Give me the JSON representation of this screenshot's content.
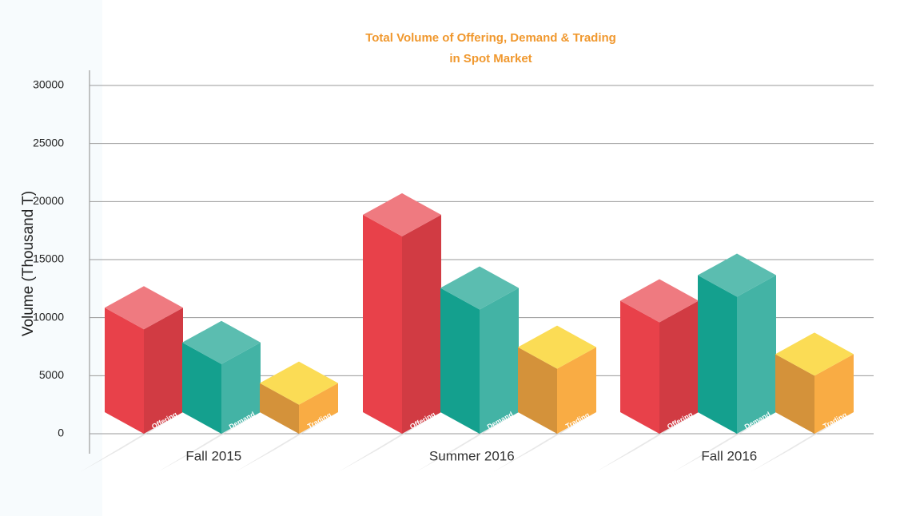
{
  "chart_data": {
    "type": "bar3d",
    "title": [
      "Total Volume of Offering, Demand & Trading",
      "in Spot Market"
    ],
    "y_label": "Volume (Thousand T)",
    "categories": [
      "Fall 2015",
      "Summer 2016",
      "Fall 2016"
    ],
    "series": [
      {
        "name": "Offering",
        "color": "#e8414a",
        "values": [
          9000,
          17000,
          9600
        ]
      },
      {
        "name": "Demand",
        "color": "#14a08e",
        "values": [
          6000,
          10700,
          11800
        ]
      },
      {
        "name": "Trading",
        "color": "#f9ac44",
        "values": [
          2500,
          5600,
          5000
        ]
      }
    ],
    "ylim": [
      0,
      30000
    ],
    "yticks": [
      0,
      5000,
      10000,
      15000,
      20000,
      25000,
      30000
    ],
    "grid": true
  }
}
